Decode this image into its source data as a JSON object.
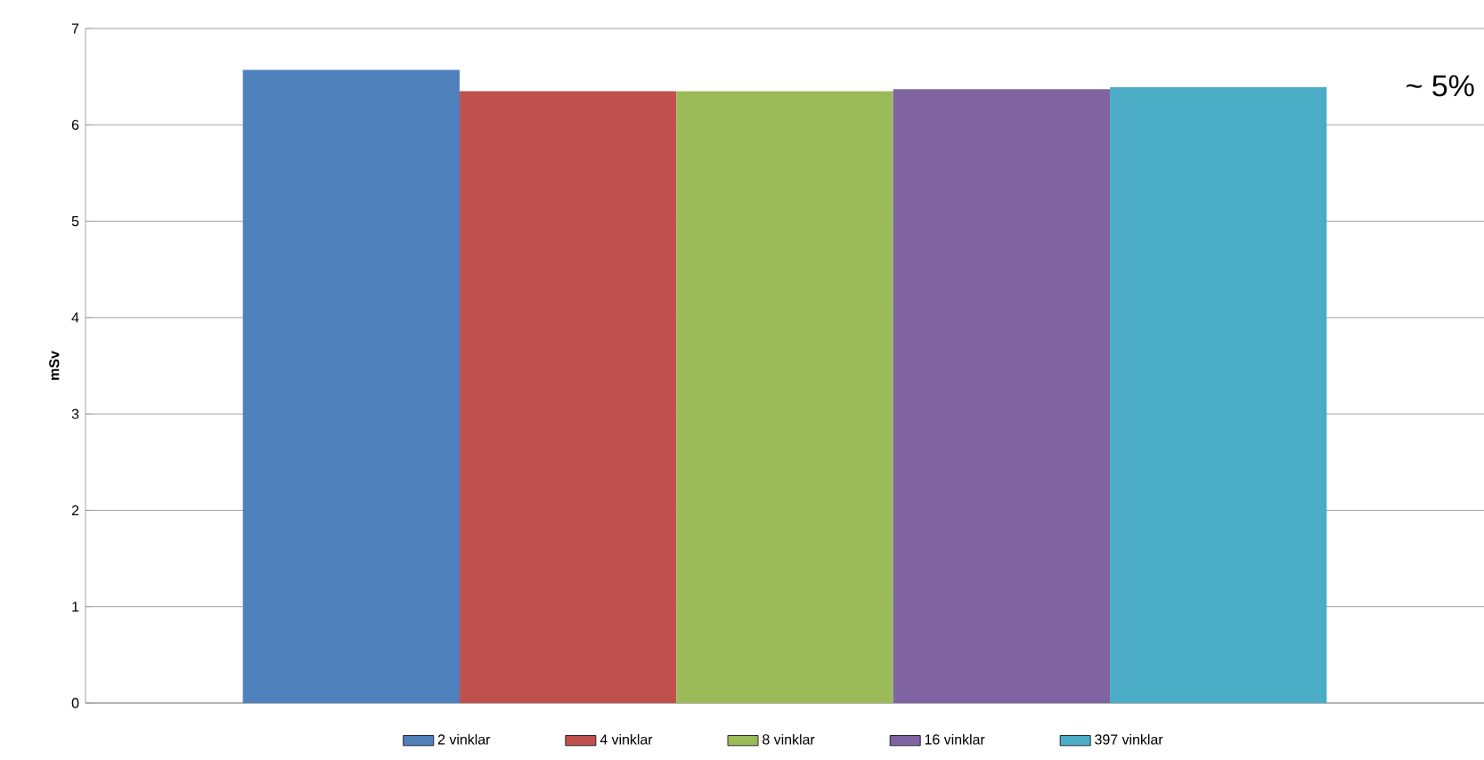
{
  "chart_data": {
    "type": "bar",
    "ylabel": "mSv",
    "categories": [
      null
    ],
    "series": [
      {
        "name": "2 vinklar",
        "color": "#4f81bd",
        "values": [
          6.57
        ]
      },
      {
        "name": "4 vinklar",
        "color": "#c0504d",
        "values": [
          6.35
        ]
      },
      {
        "name": "8 vinklar",
        "color": "#9bbb59",
        "values": [
          6.35
        ]
      },
      {
        "name": "16 vinklar",
        "color": "#8064a2",
        "values": [
          6.37
        ]
      },
      {
        "name": "397 vinklar",
        "color": "#4bacc6",
        "values": [
          6.39
        ]
      }
    ],
    "ylim": [
      0,
      7
    ],
    "yticks": [
      0,
      1,
      2,
      3,
      4,
      5,
      6,
      7
    ],
    "grid": "y",
    "legend": "bottom",
    "annotations": [
      "~ 5%"
    ]
  }
}
